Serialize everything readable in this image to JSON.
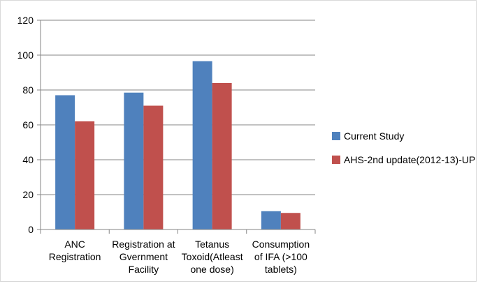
{
  "chart_data": {
    "type": "bar",
    "categories": [
      [
        "ANC",
        "Registration"
      ],
      [
        "Registration at",
        "Gvernment",
        "Facility"
      ],
      [
        "Tetanus",
        "Toxoid(Atleast",
        "one dose)"
      ],
      [
        "Consumption",
        "of IFA (>100",
        "tablets)"
      ]
    ],
    "series": [
      {
        "name": "Current Study",
        "color": "#4f81bd",
        "values": [
          77,
          78.5,
          96.5,
          10.5
        ]
      },
      {
        "name": "AHS-2nd update(2012-13)-UP",
        "color": "#c0504d",
        "values": [
          62,
          71,
          84,
          9.5
        ]
      }
    ],
    "ylim": [
      0,
      120
    ],
    "yticks": [
      0,
      20,
      40,
      60,
      80,
      100,
      120
    ],
    "grid": true,
    "legend_position": "right",
    "title": "",
    "xlabel": "",
    "ylabel": ""
  }
}
